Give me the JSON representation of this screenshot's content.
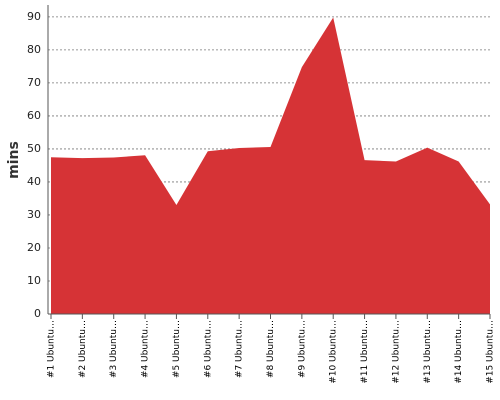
{
  "chart_data": {
    "type": "area",
    "y_label": "mins",
    "categories": [
      "#1 Ubuntu…",
      "#2 Ubuntu…",
      "#3 Ubuntu…",
      "#4 Ubuntu…",
      "#5 Ubuntu…",
      "#6 Ubuntu…",
      "#7 Ubuntu…",
      "#8 Ubuntu…",
      "#9 Ubuntu…",
      "#10 Ubuntu…",
      "#11 Ubuntu…",
      "#12 Ubuntu…",
      "#13 Ubuntu…",
      "#14 Ubuntu…",
      "#15 Ubuntu…"
    ],
    "values": [
      47.5,
      47.2,
      47.4,
      48.1,
      33,
      49.3,
      50.3,
      50.6,
      74.8,
      89.8,
      46.6,
      46.2,
      50.4,
      46.2,
      33.2
    ],
    "color": "#d63336",
    "ylim": [
      0,
      93.6
    ],
    "yticks": [
      0,
      10,
      20,
      30,
      40,
      50,
      60,
      70,
      80,
      90
    ],
    "grid": true
  }
}
